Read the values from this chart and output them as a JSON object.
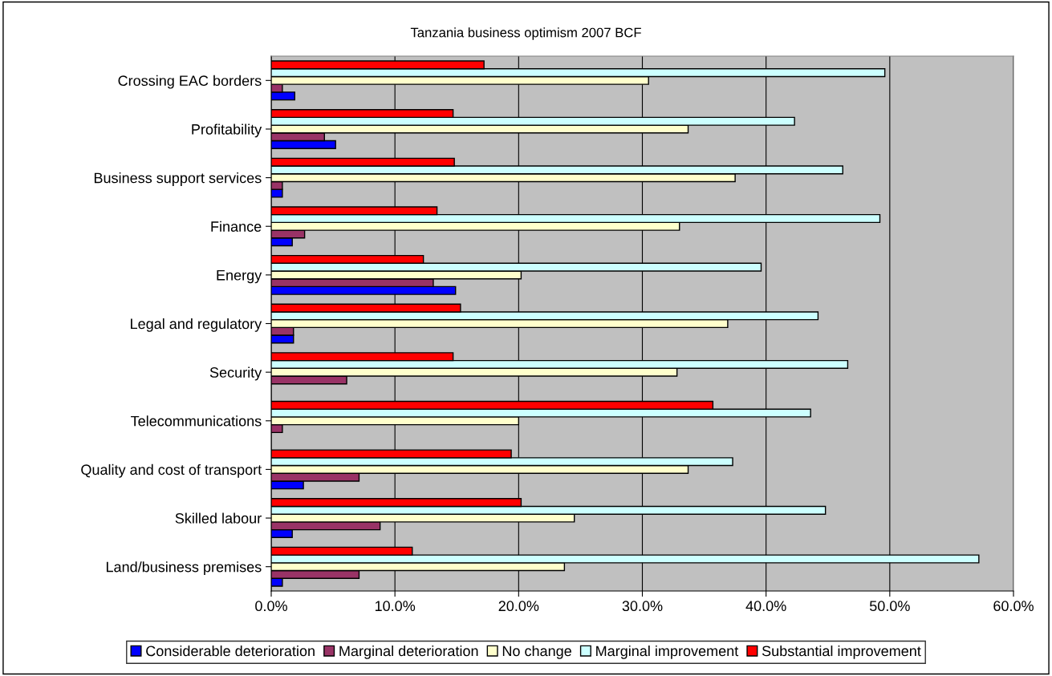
{
  "chart_data": {
    "type": "bar",
    "orientation": "horizontal",
    "title": "Tanzania business optimism 2007 BCF",
    "categories": [
      "Crossing EAC borders",
      "Profitability",
      "Business support services",
      "Finance",
      "Energy",
      "Legal and regulatory",
      "Security",
      "Telecommunications",
      "Quality and cost of transport",
      "Skilled labour",
      "Land/business premises"
    ],
    "series": [
      {
        "name": "Considerable deterioration",
        "color": "#0000ff",
        "values": [
          1.9,
          5.2,
          0.9,
          1.7,
          14.9,
          1.8,
          null,
          null,
          2.6,
          1.7,
          0.9
        ]
      },
      {
        "name": "Marginal deterioration",
        "color": "#993366",
        "values": [
          0.9,
          4.3,
          0.9,
          2.7,
          13.1,
          1.8,
          6.1,
          0.9,
          7.1,
          8.8,
          7.1
        ]
      },
      {
        "name": "No change",
        "color": "#ffffcc",
        "values": [
          30.5,
          33.7,
          37.5,
          33.0,
          20.2,
          36.9,
          32.8,
          20.0,
          33.7,
          24.5,
          23.7
        ]
      },
      {
        "name": "Marginal improvement",
        "color": "#ccffff",
        "values": [
          49.6,
          42.3,
          46.2,
          49.2,
          39.6,
          44.2,
          46.6,
          43.6,
          37.3,
          44.8,
          57.2
        ]
      },
      {
        "name": "Substantial improvement",
        "color": "#ff0000",
        "values": [
          17.2,
          14.7,
          14.8,
          13.4,
          12.3,
          15.3,
          14.7,
          35.7,
          19.4,
          20.2,
          11.4
        ]
      }
    ],
    "xlim": [
      0,
      60
    ],
    "xticks": [
      {
        "value": 0,
        "label": "0.0%"
      },
      {
        "value": 10,
        "label": "10.0%"
      },
      {
        "value": 20,
        "label": "20.0%"
      },
      {
        "value": 30,
        "label": "30.0%"
      },
      {
        "value": 40,
        "label": "40.0%"
      },
      {
        "value": 50,
        "label": "50.0%"
      },
      {
        "value": 60,
        "label": "60.0%"
      }
    ],
    "grid": "x",
    "legend": "bottom"
  }
}
